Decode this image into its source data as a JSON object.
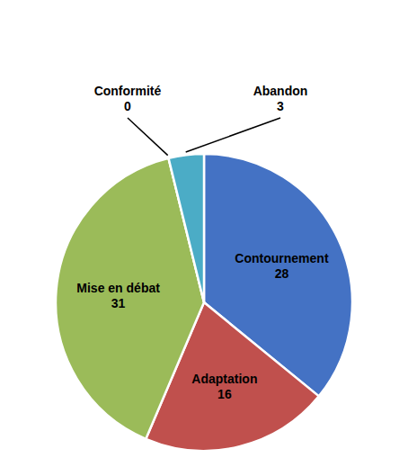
{
  "chart_data": {
    "type": "pie",
    "categories": [
      "Contournement",
      "Adaptation",
      "Mise en débat",
      "Conformité",
      "Abandon"
    ],
    "values": [
      28,
      16,
      31,
      0,
      3
    ],
    "colors": [
      "#4472C4",
      "#C0504D",
      "#9BBB59",
      "#FFFFFF",
      "#4BACC6"
    ],
    "data_labels": true
  }
}
